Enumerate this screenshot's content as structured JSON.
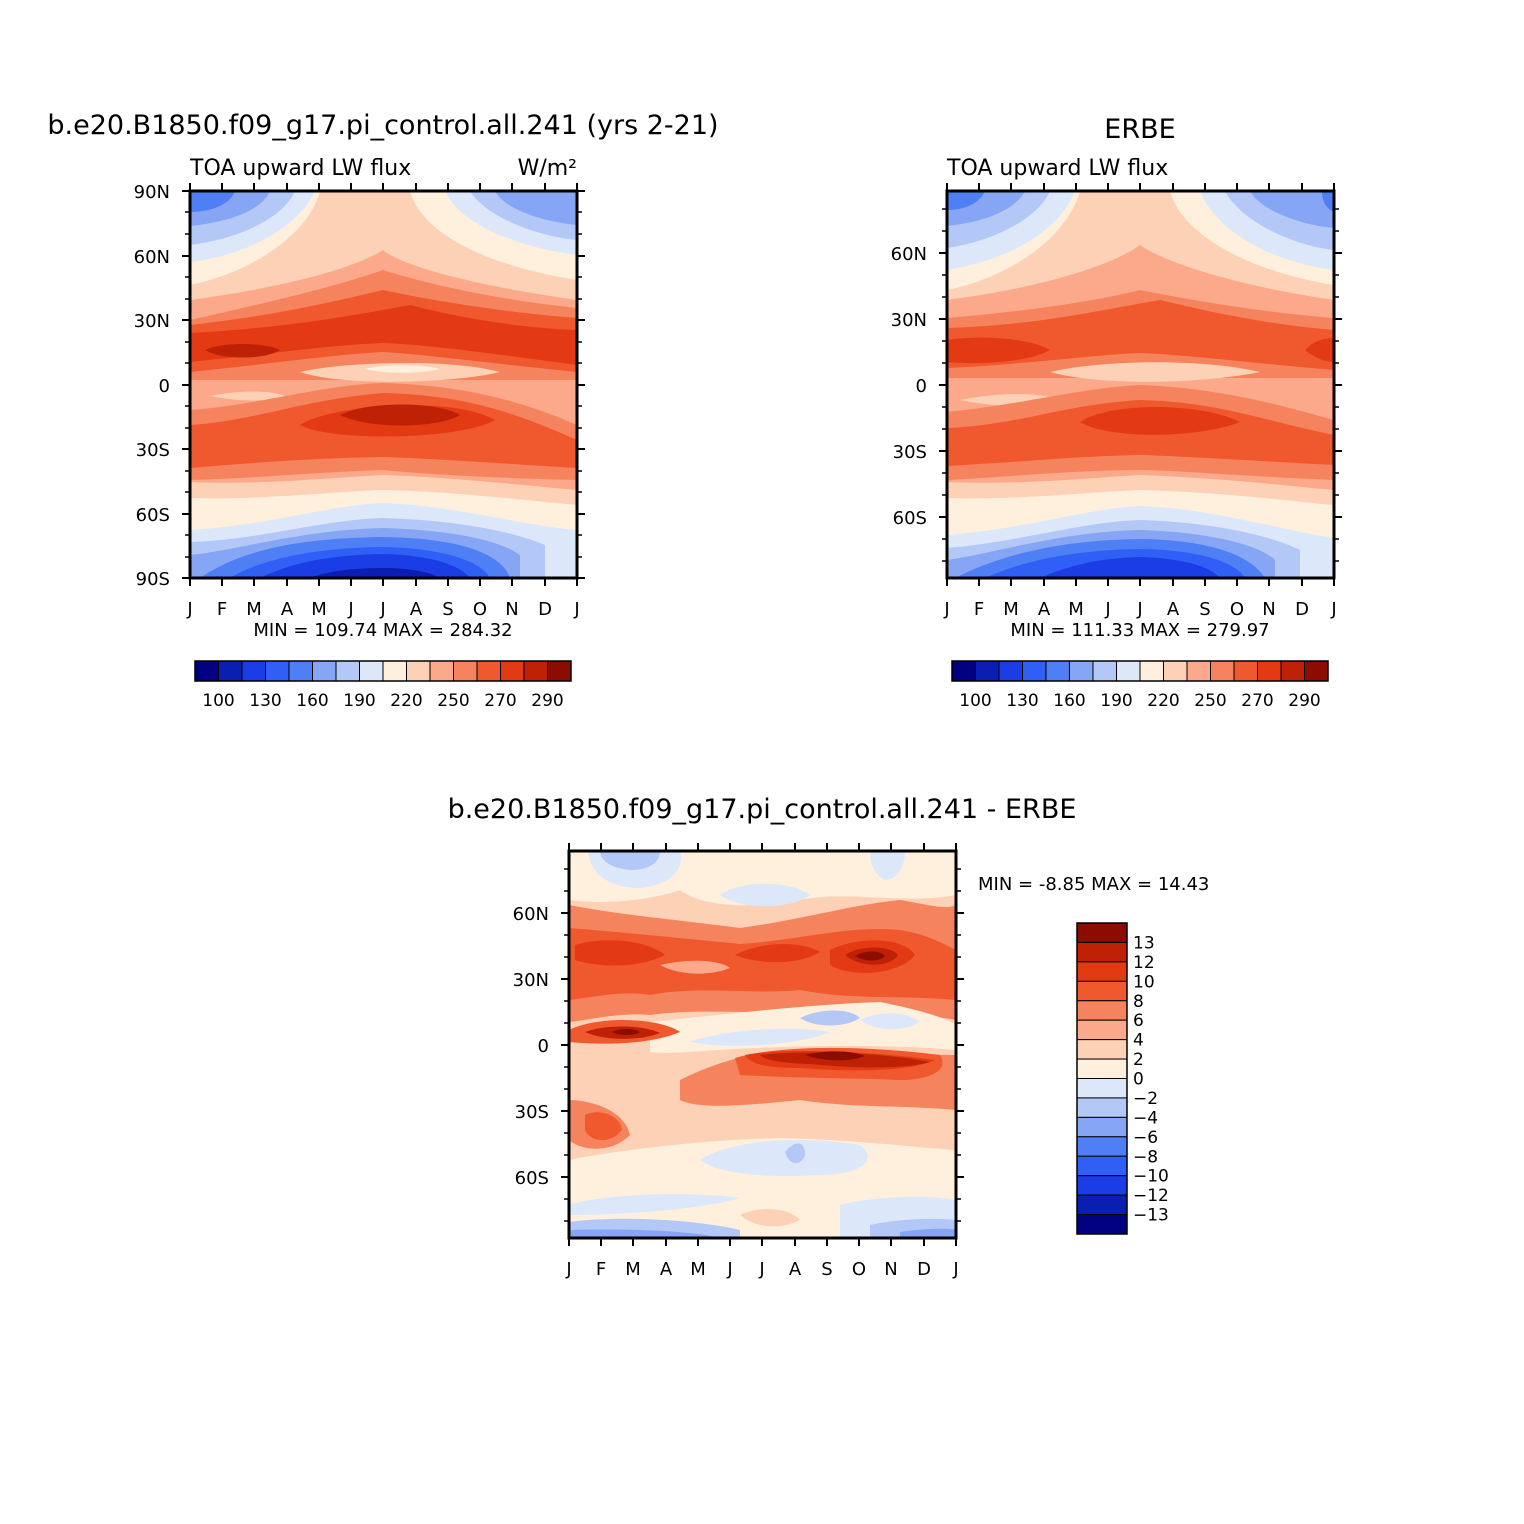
{
  "chart_data": [
    {
      "type": "heatmap",
      "title": "b.e20.B1850.f09_g17.pi_control.all.241 (yrs 2-21)",
      "subtitle_left": "TOA upward LW flux",
      "units": "W/m²",
      "x_ticks": [
        "J",
        "F",
        "M",
        "A",
        "M",
        "J",
        "J",
        "A",
        "S",
        "O",
        "N",
        "D",
        "J"
      ],
      "y_ticks": [
        "90N",
        "60N",
        "30N",
        "0",
        "30S",
        "60S",
        "90S"
      ],
      "ylim": [
        -90,
        90
      ],
      "stats": "MIN = 109.74 MAX = 284.32",
      "colorbar": {
        "orientation": "horizontal",
        "labels": [
          "100",
          "130",
          "160",
          "190",
          "220",
          "250",
          "270",
          "290"
        ],
        "colors": [
          "#000080",
          "#0a1eb4",
          "#1a3de6",
          "#2f5ff5",
          "#4f7ff5",
          "#86a6f5",
          "#b4c8f7",
          "#dce8fa",
          "#fff0de",
          "#fdd1b5",
          "#fba98a",
          "#f5845e",
          "#f0582e",
          "#e33a14",
          "#bf2106",
          "#8a0d00"
        ]
      }
    },
    {
      "type": "heatmap",
      "title": "ERBE",
      "subtitle_left": "TOA upward LW flux",
      "x_ticks": [
        "J",
        "F",
        "M",
        "A",
        "M",
        "J",
        "J",
        "A",
        "S",
        "O",
        "N",
        "D",
        "J"
      ],
      "y_ticks": [
        "60N",
        "30N",
        "0",
        "30S",
        "60S"
      ],
      "ylim": [
        -90,
        90
      ],
      "stats": "MIN = 111.33 MAX = 279.97",
      "colorbar": {
        "orientation": "horizontal",
        "labels": [
          "100",
          "130",
          "160",
          "190",
          "220",
          "250",
          "270",
          "290"
        ],
        "colors": [
          "#000080",
          "#0a1eb4",
          "#1a3de6",
          "#2f5ff5",
          "#4f7ff5",
          "#86a6f5",
          "#b4c8f7",
          "#dce8fa",
          "#fff0de",
          "#fdd1b5",
          "#fba98a",
          "#f5845e",
          "#f0582e",
          "#e33a14",
          "#bf2106",
          "#8a0d00"
        ]
      }
    },
    {
      "type": "heatmap",
      "title": "b.e20.B1850.f09_g17.pi_control.all.241 - ERBE",
      "x_ticks": [
        "J",
        "F",
        "M",
        "A",
        "M",
        "J",
        "J",
        "A",
        "S",
        "O",
        "N",
        "D",
        "J"
      ],
      "y_ticks": [
        "60N",
        "30N",
        "0",
        "30S",
        "60S"
      ],
      "ylim": [
        -90,
        90
      ],
      "stats": "MIN = -8.85 MAX = 14.43",
      "colorbar": {
        "orientation": "vertical",
        "labels": [
          "13",
          "12",
          "10",
          "8",
          "6",
          "4",
          "2",
          "0",
          "-2",
          "-4",
          "-6",
          "-8",
          "-10",
          "-12",
          "-13"
        ],
        "colors": [
          "#8a0d00",
          "#bf2106",
          "#e33a14",
          "#f0582e",
          "#f5845e",
          "#fba98a",
          "#fdd1b5",
          "#fff0de",
          "#dce8fa",
          "#b4c8f7",
          "#86a6f5",
          "#4f7ff5",
          "#2f5ff5",
          "#1a3de6",
          "#0a1eb4",
          "#000080"
        ]
      }
    }
  ]
}
